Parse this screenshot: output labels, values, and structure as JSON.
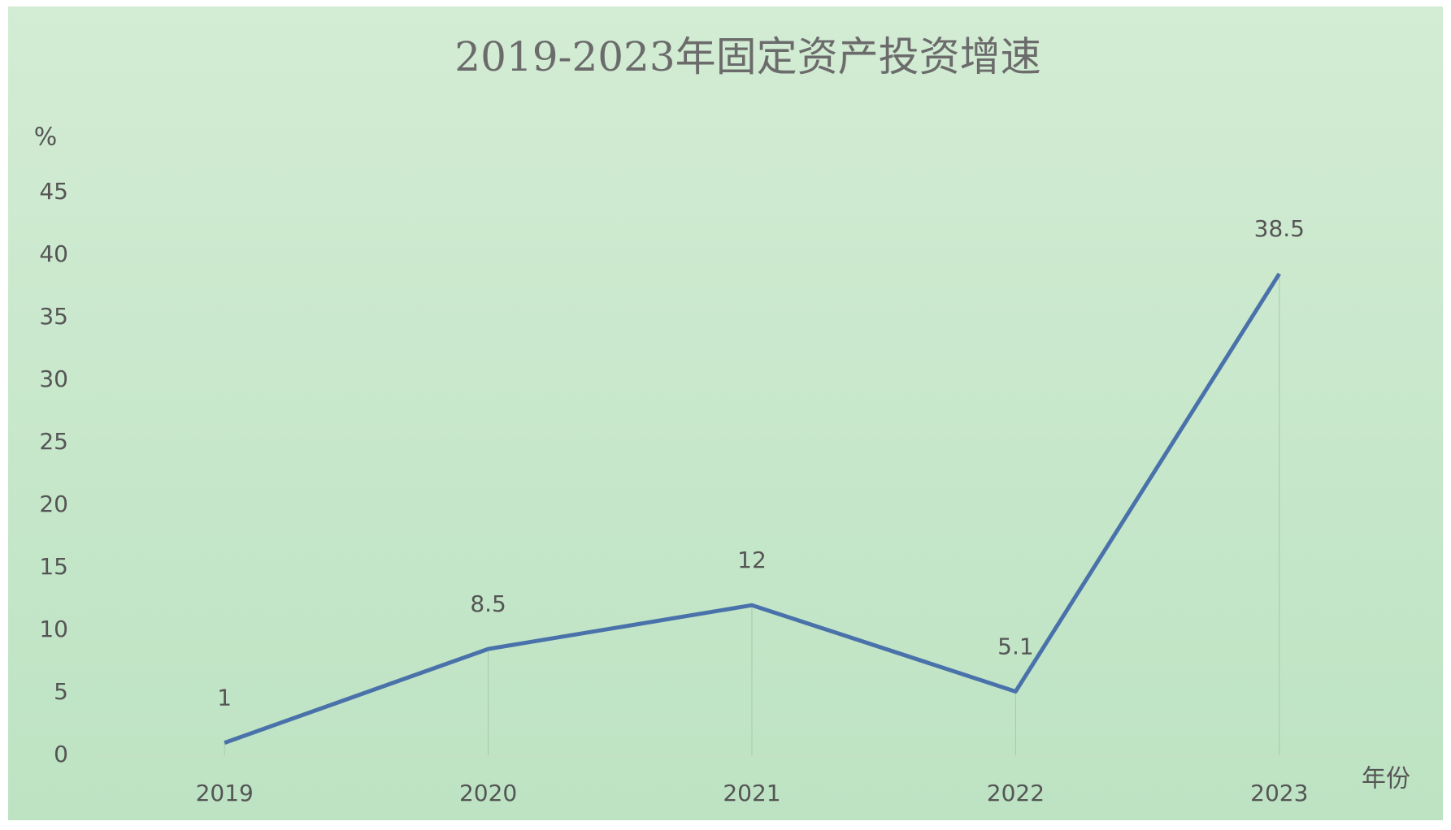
{
  "chart_data": {
    "type": "line",
    "title": "2019-2023年固定资产投资增速",
    "y_label": "%",
    "x_label": "年份",
    "categories": [
      "2019",
      "2020",
      "2021",
      "2022",
      "2023"
    ],
    "values": [
      1,
      8.5,
      12,
      5.1,
      38.5
    ],
    "color": "#4a72aa",
    "ylim": [
      0,
      45
    ],
    "yticks": [
      0,
      5,
      10,
      15,
      20,
      25,
      30,
      35,
      40,
      45
    ],
    "grid": false,
    "drop_lines": true,
    "data_labels": true
  }
}
